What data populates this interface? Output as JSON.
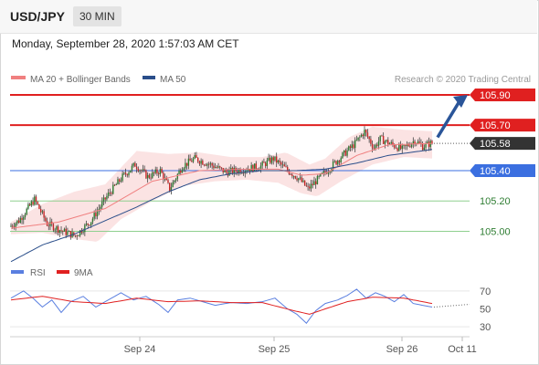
{
  "header": {
    "symbol": "USD/JPY",
    "timeframe": "30 MIN"
  },
  "datetime": "Monday, September 28, 2020 1:57:03 AM CET",
  "legend": {
    "ma20": "MA 20 + Bollinger Bands",
    "ma50": "MA 50",
    "credit": "Research © 2020 Trading Central"
  },
  "rsi_legend": {
    "rsi": "RSI",
    "ma9": "9MA"
  },
  "colors": {
    "up": "#2e7d32",
    "down": "#c62828",
    "bollinger": "#f8cccc",
    "ma20": "#f08080",
    "ma50": "#2a4e8a",
    "resistance": "#e02020",
    "pivot": "#3b6fe0",
    "support": "#8fd08f",
    "arrow": "#2a5599",
    "rsi": "#5a7fe0",
    "rsi_ma": "#e02020"
  },
  "chart_data": [
    {
      "type": "candlestick",
      "x_ticks": [
        "Sep 24",
        "Sep 25",
        "Sep 26",
        "Oct 11"
      ],
      "ylim": [
        104.78,
        105.96
      ],
      "last_price": 105.58,
      "levels": [
        {
          "value": 105.9,
          "label": "105.90",
          "kind": "resistance"
        },
        {
          "value": 105.7,
          "label": "105.70",
          "kind": "resistance"
        },
        {
          "value": 105.4,
          "label": "105.40",
          "kind": "pivot"
        },
        {
          "value": 105.2,
          "label": "105.20",
          "kind": "support"
        },
        {
          "value": 105.0,
          "label": "105.00",
          "kind": "support"
        }
      ],
      "price_path": [
        [
          0,
          105.03
        ],
        [
          6,
          105.07
        ],
        [
          16,
          105.21
        ],
        [
          24,
          105.05
        ],
        [
          34,
          105.0
        ],
        [
          42,
          104.97
        ],
        [
          52,
          105.07
        ],
        [
          62,
          105.23
        ],
        [
          72,
          105.36
        ],
        [
          80,
          105.44
        ],
        [
          88,
          105.36
        ],
        [
          96,
          105.4
        ],
        [
          102,
          105.28
        ],
        [
          110,
          105.43
        ],
        [
          118,
          105.48
        ],
        [
          128,
          105.44
        ],
        [
          138,
          105.39
        ],
        [
          150,
          105.41
        ],
        [
          160,
          105.43
        ],
        [
          168,
          105.48
        ],
        [
          176,
          105.41
        ],
        [
          184,
          105.35
        ],
        [
          190,
          105.28
        ],
        [
          196,
          105.34
        ],
        [
          204,
          105.42
        ],
        [
          212,
          105.5
        ],
        [
          220,
          105.58
        ],
        [
          226,
          105.66
        ],
        [
          232,
          105.55
        ],
        [
          236,
          105.61
        ],
        [
          242,
          105.58
        ],
        [
          250,
          105.54
        ],
        [
          258,
          105.6
        ],
        [
          263,
          105.56
        ],
        [
          268,
          105.58
        ]
      ],
      "ma20_path": [
        [
          0,
          105.02
        ],
        [
          30,
          105.06
        ],
        [
          60,
          105.15
        ],
        [
          90,
          105.33
        ],
        [
          120,
          105.4
        ],
        [
          150,
          105.41
        ],
        [
          170,
          105.41
        ],
        [
          185,
          105.37
        ],
        [
          200,
          105.38
        ],
        [
          220,
          105.5
        ],
        [
          240,
          105.57
        ],
        [
          268,
          105.58
        ]
      ],
      "bollinger_upper": [
        [
          0,
          105.06
        ],
        [
          20,
          105.18
        ],
        [
          40,
          105.26
        ],
        [
          60,
          105.31
        ],
        [
          80,
          105.53
        ],
        [
          100,
          105.51
        ],
        [
          120,
          105.52
        ],
        [
          140,
          105.49
        ],
        [
          160,
          105.49
        ],
        [
          175,
          105.52
        ],
        [
          190,
          105.44
        ],
        [
          200,
          105.48
        ],
        [
          215,
          105.62
        ],
        [
          230,
          105.69
        ],
        [
          250,
          105.67
        ],
        [
          268,
          105.66
        ]
      ],
      "bollinger_lower": [
        [
          0,
          104.98
        ],
        [
          20,
          104.99
        ],
        [
          40,
          104.95
        ],
        [
          55,
          104.93
        ],
        [
          70,
          105.08
        ],
        [
          90,
          105.2
        ],
        [
          110,
          105.3
        ],
        [
          130,
          105.33
        ],
        [
          150,
          105.34
        ],
        [
          170,
          105.32
        ],
        [
          185,
          105.25
        ],
        [
          195,
          105.23
        ],
        [
          210,
          105.33
        ],
        [
          230,
          105.44
        ],
        [
          250,
          105.49
        ],
        [
          268,
          105.48
        ]
      ],
      "ma50_path": [
        [
          0,
          104.8
        ],
        [
          20,
          104.91
        ],
        [
          40,
          104.98
        ],
        [
          60,
          105.07
        ],
        [
          80,
          105.16
        ],
        [
          100,
          105.26
        ],
        [
          120,
          105.34
        ],
        [
          140,
          105.38
        ],
        [
          160,
          105.4
        ],
        [
          180,
          105.4
        ],
        [
          200,
          105.41
        ],
        [
          220,
          105.45
        ],
        [
          240,
          105.5
        ],
        [
          268,
          105.54
        ]
      ],
      "projection": {
        "from": [
          268,
          105.62
        ],
        "to": [
          300,
          105.9
        ]
      }
    },
    {
      "type": "line",
      "name": "RSI",
      "y_ticks": [
        70,
        50,
        30
      ],
      "ylim": [
        22,
        78
      ],
      "rsi_path": [
        [
          0,
          62
        ],
        [
          8,
          70
        ],
        [
          14,
          62
        ],
        [
          20,
          52
        ],
        [
          26,
          60
        ],
        [
          32,
          46
        ],
        [
          38,
          58
        ],
        [
          46,
          64
        ],
        [
          54,
          52
        ],
        [
          62,
          60
        ],
        [
          70,
          68
        ],
        [
          78,
          60
        ],
        [
          86,
          64
        ],
        [
          94,
          55
        ],
        [
          100,
          46
        ],
        [
          106,
          60
        ],
        [
          114,
          62
        ],
        [
          122,
          58
        ],
        [
          130,
          54
        ],
        [
          140,
          57
        ],
        [
          150,
          56
        ],
        [
          160,
          58
        ],
        [
          168,
          62
        ],
        [
          176,
          50
        ],
        [
          182,
          44
        ],
        [
          188,
          34
        ],
        [
          194,
          48
        ],
        [
          200,
          56
        ],
        [
          208,
          60
        ],
        [
          214,
          65
        ],
        [
          220,
          72
        ],
        [
          226,
          62
        ],
        [
          232,
          68
        ],
        [
          238,
          64
        ],
        [
          244,
          58
        ],
        [
          250,
          66
        ],
        [
          256,
          56
        ],
        [
          262,
          54
        ],
        [
          268,
          52
        ]
      ],
      "ma9_path": [
        [
          0,
          60
        ],
        [
          20,
          64
        ],
        [
          40,
          58
        ],
        [
          60,
          56
        ],
        [
          80,
          62
        ],
        [
          100,
          58
        ],
        [
          120,
          59
        ],
        [
          140,
          57
        ],
        [
          160,
          57
        ],
        [
          180,
          48
        ],
        [
          190,
          44
        ],
        [
          200,
          50
        ],
        [
          214,
          58
        ],
        [
          230,
          63
        ],
        [
          250,
          62
        ],
        [
          268,
          56
        ]
      ]
    }
  ]
}
